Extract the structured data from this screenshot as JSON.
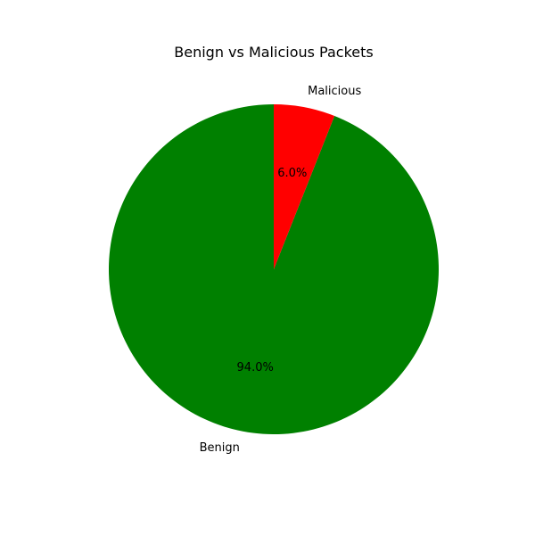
{
  "chart_data": {
    "type": "pie",
    "title": "Benign vs Malicious Packets",
    "labels": [
      "Benign",
      "Malicious"
    ],
    "values": [
      94.0,
      6.0
    ],
    "percent_labels": [
      "94.0%",
      "6.0%"
    ],
    "colors": [
      "#008000",
      "#ff0000"
    ],
    "start_angle_deg": 90,
    "direction": "counterclockwise",
    "legend": "none"
  }
}
